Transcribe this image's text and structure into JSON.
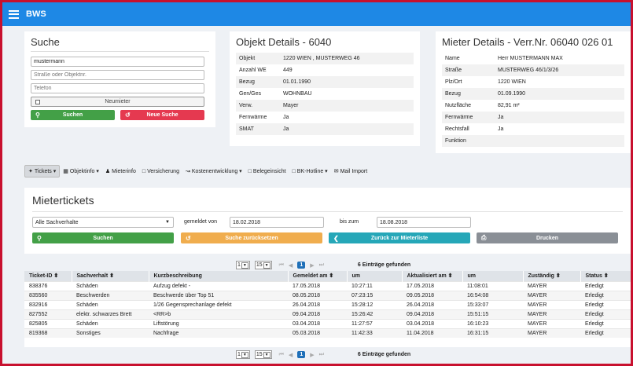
{
  "app": {
    "title": "BWS"
  },
  "search": {
    "heading": "Suche",
    "name_value": "mustermann",
    "street_placeholder": "Straße oder Objektnr.",
    "phone_placeholder": "Telefon",
    "neumieter_label": "Neumieter",
    "search_label": "Suchen",
    "new_search_label": "Neue Suche"
  },
  "objekt": {
    "heading": "Objekt Details - 6040",
    "rows": [
      {
        "k": "Objekt",
        "v": "1220 WIEN , MUSTERWEG 46"
      },
      {
        "k": "Anzahl WE",
        "v": "449"
      },
      {
        "k": "Bezug",
        "v": "01.01.1990"
      },
      {
        "k": "Gen/Ges",
        "v": "WOHNBAU"
      },
      {
        "k": "Verw.",
        "v": "Mayer"
      },
      {
        "k": "Fernwärme",
        "v": "Ja"
      },
      {
        "k": "SMAT",
        "v": "Ja"
      }
    ]
  },
  "mieter": {
    "heading": "Mieter Details - Verr.Nr. 06040 026 01",
    "rows": [
      {
        "k": "Name",
        "v": "Herr MUSTERMANN MAX"
      },
      {
        "k": "Straße",
        "v": "MUSTERWEG 46/1/3/26"
      },
      {
        "k": "Plz/Ort",
        "v": "1220 WIEN"
      },
      {
        "k": "Bezug",
        "v": "01.09.1990"
      },
      {
        "k": "Nutzfläche",
        "v": "82,91 m²"
      },
      {
        "k": "Fernwärme",
        "v": "Ja"
      },
      {
        "k": "Rechtsfall",
        "v": "Ja"
      },
      {
        "k": "Funktion",
        "v": ""
      }
    ]
  },
  "toolbar": {
    "items": [
      {
        "label": "Tickets ▾",
        "icon": "tag-icon"
      },
      {
        "label": "Objektinfo ▾",
        "icon": "building-icon"
      },
      {
        "label": "Mieterinfo",
        "icon": "user-icon"
      },
      {
        "label": "Versicherung",
        "icon": "file-icon"
      },
      {
        "label": "Kostenentwicklung ▾",
        "icon": "line-chart-icon"
      },
      {
        "label": "Belegeinsicht",
        "icon": "file-icon"
      },
      {
        "label": "BK-Hotline ▾",
        "icon": "file-icon"
      },
      {
        "label": "Mail Import",
        "icon": "envelope-icon"
      }
    ]
  },
  "tickets": {
    "heading": "Mietertickets",
    "sachverhalt_value": "Alle Sachverhalte",
    "gemeldet_von_label": "gemeldet von",
    "gemeldet_von_value": "18.02.2018",
    "bis_zum_label": "bis zum",
    "bis_zum_value": "18.08.2018",
    "btn_search": "Suchen",
    "btn_reset": "Suche zurücksetzen",
    "btn_back": "Zurück zur Mieterliste",
    "btn_print": "Drucken"
  },
  "pager": {
    "page_size_1": "1",
    "page_size_2": "15",
    "current_page": "1",
    "count_text": "6 Einträge gefunden"
  },
  "table": {
    "headers": [
      "Ticket-ID ⬍",
      "Sachverhalt ⬍",
      "Kurzbeschreibung",
      "Gemeldet am ⬍",
      "um",
      "Aktualisiert am ⬍",
      "um",
      "Zuständig ⬍",
      "Status ⬍"
    ],
    "rows": [
      [
        "838376",
        "Schäden",
        "Aufzug defekt -",
        "17.05.2018",
        "10:27:11",
        "17.05.2018",
        "11:08:01",
        "MAYER",
        "Erledigt"
      ],
      [
        "835560",
        "Beschwerden",
        "Beschwerde über Top 51",
        "08.05.2018",
        "07:23:15",
        "09.05.2018",
        "16:54:08",
        "MAYER",
        "Erledigt"
      ],
      [
        "832916",
        "Schäden",
        "1/26 Gegensprechanlage defekt",
        "26.04.2018",
        "15:28:12",
        "26.04.2018",
        "15:33:07",
        "MAYER",
        "Erledigt"
      ],
      [
        "827552",
        "elektr. schwarzes Brett",
        "<RR>b",
        "09.04.2018",
        "15:26:42",
        "09.04.2018",
        "15:51:15",
        "MAYER",
        "Erledigt"
      ],
      [
        "825805",
        "Schäden",
        "Liftstörung",
        "03.04.2018",
        "11:27:57",
        "03.04.2018",
        "16:10:23",
        "MAYER",
        "Erledigt"
      ],
      [
        "819368",
        "Sonstiges",
        "Nachfrage",
        "05.03.2018",
        "11:42:33",
        "11.04.2018",
        "16:31:15",
        "MAYER",
        "Erledigt"
      ]
    ]
  }
}
